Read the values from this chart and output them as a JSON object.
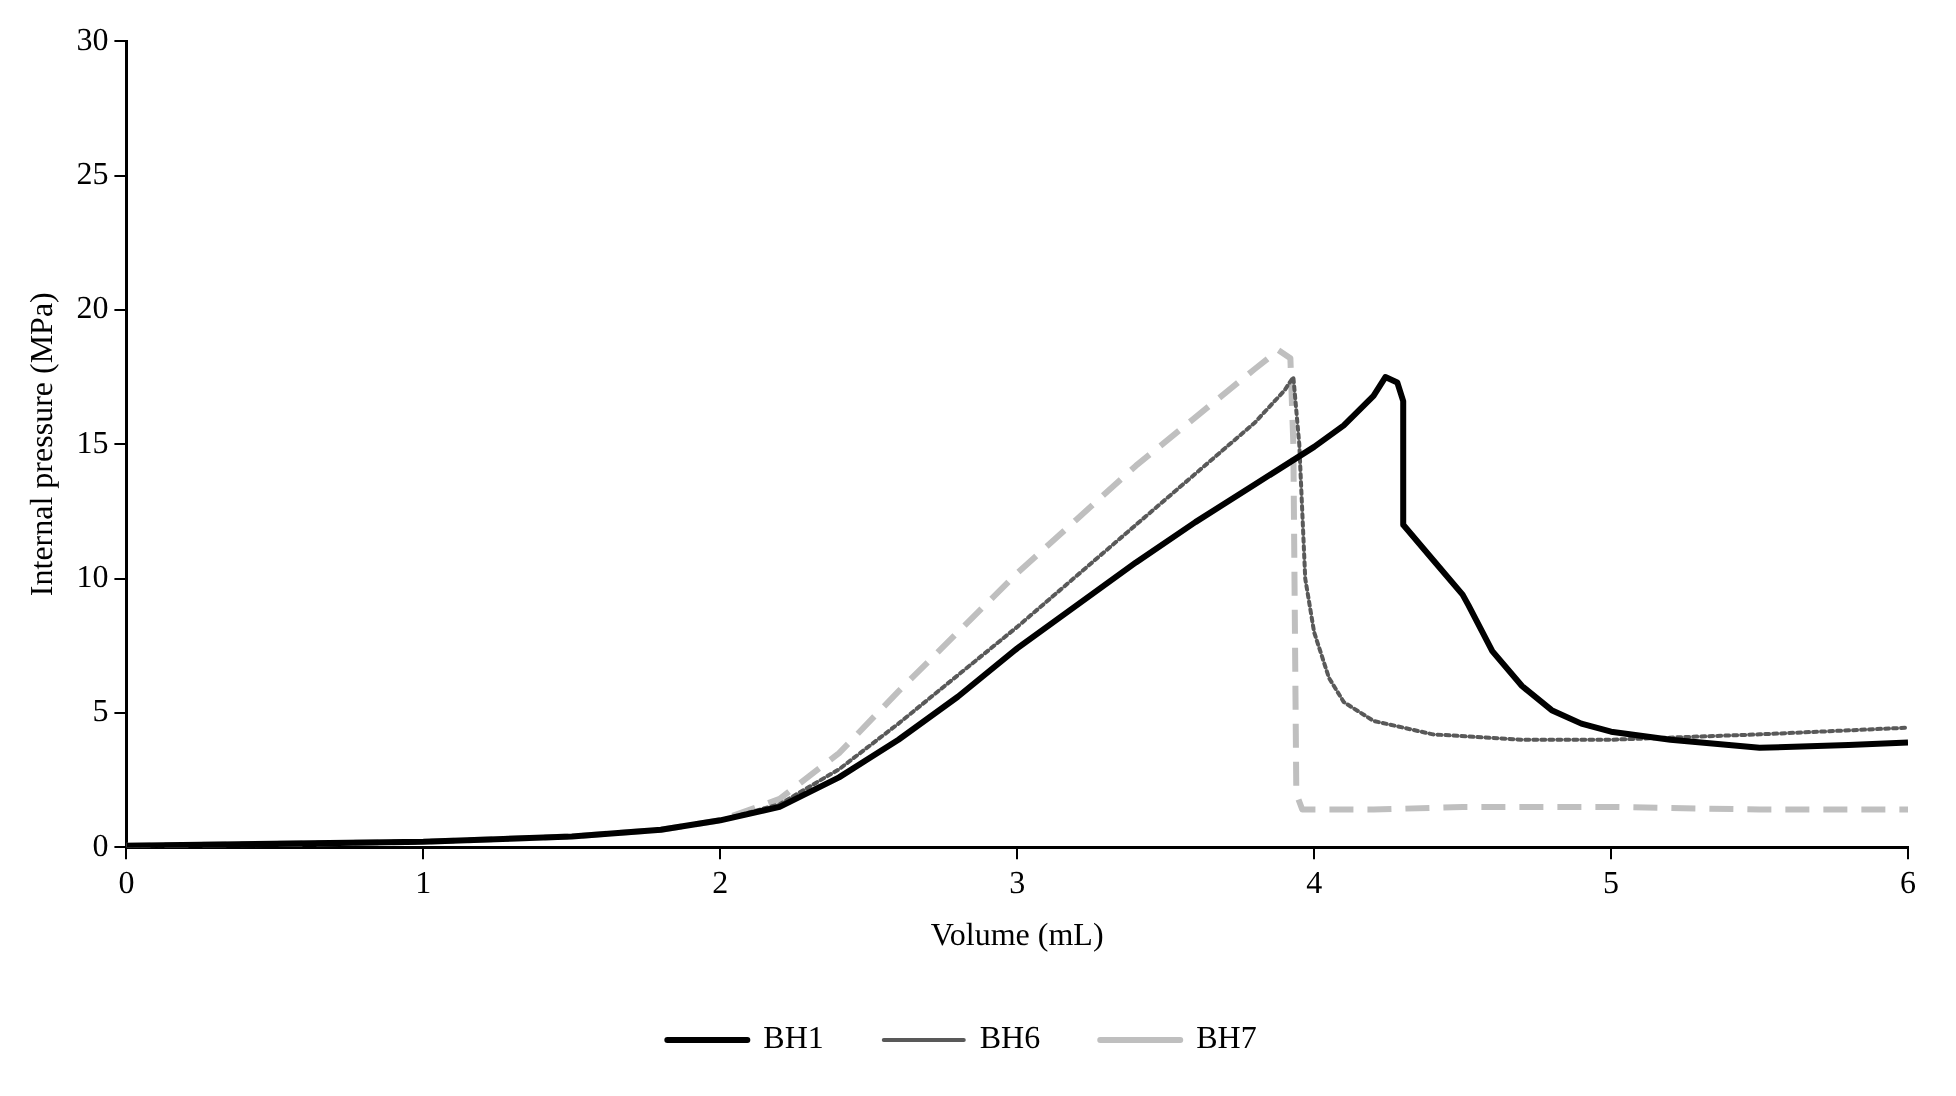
{
  "chart_data": {
    "type": "line",
    "xlabel": "Volume (mL)",
    "ylabel": "Internal pressure (MPa)",
    "xlim": [
      0,
      6
    ],
    "xticks": [
      0,
      1,
      2,
      3,
      4,
      5,
      6
    ],
    "ylim": [
      0,
      30
    ],
    "yticks": [
      0,
      5,
      10,
      15,
      20,
      25,
      30
    ],
    "grid": false,
    "legend": "bottom",
    "marker": "none",
    "series": [
      {
        "name": "BH1",
        "color": "#000000",
        "line_style": "solid",
        "x": [
          0,
          1,
          1.5,
          1.8,
          2,
          2.2,
          2.4,
          2.6,
          2.8,
          3,
          3.2,
          3.4,
          3.6,
          3.8,
          4,
          4.1,
          4.2,
          4.24,
          4.28,
          4.3,
          4.3,
          4.4,
          4.5,
          4.52,
          4.6,
          4.7,
          4.8,
          4.9,
          5,
          5.2,
          5.5,
          5.8,
          6
        ],
        "values": [
          0.05,
          0.2,
          0.4,
          0.65,
          1.0,
          1.5,
          2.6,
          4.0,
          5.6,
          7.4,
          9.0,
          10.6,
          12.1,
          13.5,
          14.9,
          15.7,
          16.8,
          17.5,
          17.3,
          16.6,
          12.0,
          10.7,
          9.4,
          9.0,
          7.3,
          6.0,
          5.1,
          4.6,
          4.3,
          4.0,
          3.7,
          3.8,
          3.9
        ]
      },
      {
        "name": "BH6",
        "color": "#595959",
        "line_style": "dotted",
        "x": [
          0,
          1,
          1.5,
          1.8,
          2,
          2.2,
          2.4,
          2.6,
          2.8,
          3,
          3.2,
          3.4,
          3.6,
          3.8,
          3.9,
          3.93,
          3.95,
          3.97,
          4,
          4.05,
          4.1,
          4.2,
          4.4,
          4.7,
          5,
          5.5,
          6
        ],
        "values": [
          0.05,
          0.2,
          0.4,
          0.65,
          1.0,
          1.6,
          2.9,
          4.6,
          6.4,
          8.2,
          10.1,
          12.0,
          13.9,
          15.8,
          17.0,
          17.5,
          15,
          10,
          8,
          6.3,
          5.4,
          4.7,
          4.2,
          4.0,
          4.0,
          4.2,
          4.45
        ]
      },
      {
        "name": "BH7",
        "color": "#bfbfbf",
        "line_style": "dashed",
        "x": [
          0,
          1,
          1.5,
          1.8,
          2,
          2.2,
          2.4,
          2.6,
          2.8,
          3,
          3.2,
          3.4,
          3.6,
          3.8,
          3.88,
          3.92,
          3.93,
          3.94,
          3.96,
          4.2,
          4.5,
          5,
          5.5,
          6
        ],
        "values": [
          0.05,
          0.2,
          0.4,
          0.65,
          1.0,
          1.8,
          3.5,
          5.8,
          8.0,
          10.2,
          12.2,
          14.2,
          16.0,
          17.8,
          18.5,
          18.2,
          15,
          2.0,
          1.4,
          1.4,
          1.5,
          1.5,
          1.4,
          1.4
        ]
      }
    ]
  }
}
